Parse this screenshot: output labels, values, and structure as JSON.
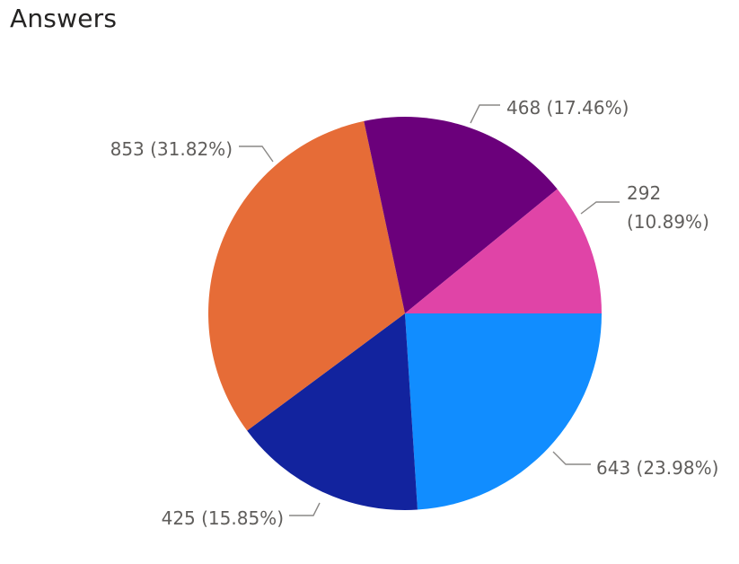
{
  "title": "Answers",
  "chart_data": {
    "type": "pie",
    "title": "Answers",
    "slices": [
      {
        "value": 643,
        "percent": "23.98%",
        "label": "643 (23.98%)",
        "color": "#118DFF"
      },
      {
        "value": 425,
        "percent": "15.85%",
        "label": "425 (15.85%)",
        "color": "#12239E"
      },
      {
        "value": 853,
        "percent": "31.82%",
        "label": "853 (31.82%)",
        "color": "#E66C37"
      },
      {
        "value": 468,
        "percent": "17.46%",
        "label": "468 (17.46%)",
        "color": "#6B007B"
      },
      {
        "value": 292,
        "percent": "10.89%",
        "label": "292 (10.89%)",
        "color": "#E044A7"
      }
    ],
    "label_lines": [
      [
        "643 (23.98%)"
      ],
      [
        "425 (15.85%)"
      ],
      [
        "853 (31.82%)"
      ],
      [
        "468 (17.46%)"
      ],
      [
        "292",
        "(10.89%)"
      ]
    ],
    "start_direction": "east",
    "rotation": "clockwise",
    "legend": "none"
  }
}
